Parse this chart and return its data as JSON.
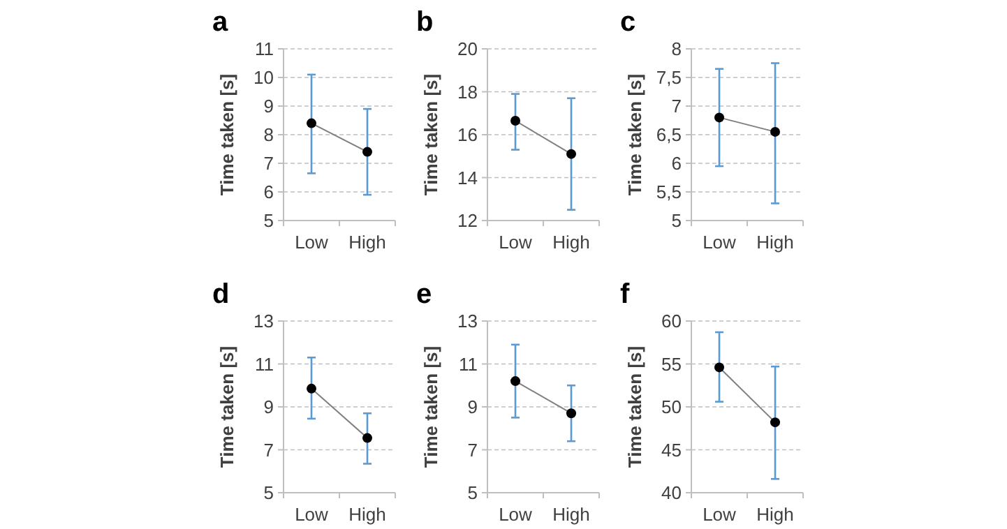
{
  "chart_data": [
    {
      "type": "line",
      "title": "a",
      "ylabel": "Time taken [s]",
      "categories": [
        "Low",
        "High"
      ],
      "ylim": [
        5,
        11
      ],
      "yticks": [
        5,
        6,
        7,
        8,
        9,
        10,
        11
      ],
      "grid": "y",
      "marker": "circle",
      "series": [
        {
          "color": "#000000",
          "values": [
            8.4,
            7.4
          ],
          "errors": [
            [
              6.65,
              10.1
            ],
            [
              5.9,
              8.9
            ]
          ]
        }
      ]
    },
    {
      "type": "line",
      "title": "b",
      "ylabel": "Time taken [s]",
      "categories": [
        "Low",
        "High"
      ],
      "ylim": [
        12,
        20
      ],
      "yticks": [
        12,
        14,
        16,
        18,
        20
      ],
      "grid": "y",
      "marker": "circle",
      "series": [
        {
          "color": "#000000",
          "values": [
            16.65,
            15.1
          ],
          "errors": [
            [
              15.3,
              17.9
            ],
            [
              12.5,
              17.7
            ]
          ]
        }
      ]
    },
    {
      "type": "line",
      "title": "c",
      "ylabel": "Time taken [s]",
      "categories": [
        "Low",
        "High"
      ],
      "ylim": [
        5,
        8
      ],
      "yticks": [
        5,
        {
          "value": 5.5,
          "label": "5,5"
        },
        6,
        {
          "value": 6.5,
          "label": "6,5"
        },
        7,
        {
          "value": 7.5,
          "label": "7,5"
        },
        8
      ],
      "grid": "y",
      "marker": "circle",
      "series": [
        {
          "color": "#000000",
          "values": [
            6.8,
            6.55
          ],
          "errors": [
            [
              5.95,
              7.65
            ],
            [
              5.3,
              7.75
            ]
          ]
        }
      ]
    },
    {
      "type": "line",
      "title": "d",
      "ylabel": "Time taken [s]",
      "categories": [
        "Low",
        "High"
      ],
      "ylim": [
        5,
        13
      ],
      "yticks": [
        5,
        7,
        9,
        11,
        13
      ],
      "grid": "y",
      "marker": "circle",
      "series": [
        {
          "color": "#000000",
          "values": [
            9.85,
            7.55
          ],
          "errors": [
            [
              8.45,
              11.3
            ],
            [
              6.35,
              8.7
            ]
          ]
        }
      ]
    },
    {
      "type": "line",
      "title": "e",
      "ylabel": "Time taken [s]",
      "categories": [
        "Low",
        "High"
      ],
      "ylim": [
        5,
        13
      ],
      "yticks": [
        5,
        7,
        9,
        11,
        13
      ],
      "grid": "y",
      "marker": "circle",
      "series": [
        {
          "color": "#000000",
          "values": [
            10.2,
            8.7
          ],
          "errors": [
            [
              8.5,
              11.9
            ],
            [
              7.4,
              10.0
            ]
          ]
        }
      ]
    },
    {
      "type": "line",
      "title": "f",
      "ylabel": "Time taken [s]",
      "categories": [
        "Low",
        "High"
      ],
      "ylim": [
        40,
        60
      ],
      "yticks": [
        40,
        45,
        50,
        55,
        60
      ],
      "grid": "y",
      "marker": "circle",
      "series": [
        {
          "color": "#000000",
          "values": [
            54.6,
            48.2
          ],
          "errors": [
            [
              50.6,
              58.7
            ],
            [
              41.6,
              54.7
            ]
          ]
        }
      ]
    }
  ]
}
